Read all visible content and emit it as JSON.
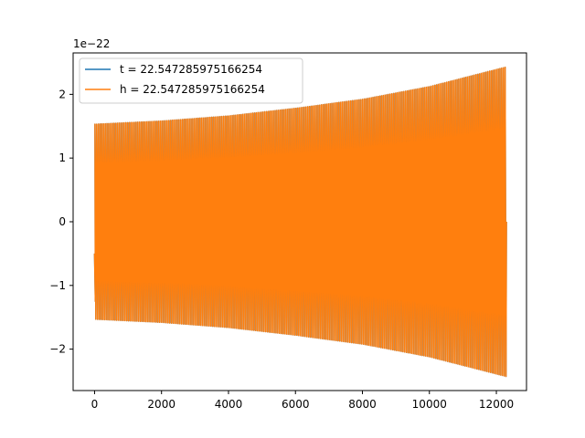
{
  "chart_data": {
    "type": "line",
    "title": "",
    "xlabel": "",
    "ylabel": "",
    "y_offset_label": "1e−22",
    "xlim": [
      -640,
      12900
    ],
    "ylim": [
      -2.65,
      2.65
    ],
    "x_ticks": [
      {
        "value": 0,
        "label": "0"
      },
      {
        "value": 2000,
        "label": "2000"
      },
      {
        "value": 4000,
        "label": "4000"
      },
      {
        "value": 6000,
        "label": "6000"
      },
      {
        "value": 8000,
        "label": "8000"
      },
      {
        "value": 10000,
        "label": "10000"
      },
      {
        "value": 12000,
        "label": "12000"
      }
    ],
    "y_ticks": [
      {
        "value": -2,
        "label": "−2"
      },
      {
        "value": -1,
        "label": "−1"
      },
      {
        "value": 0,
        "label": "0"
      },
      {
        "value": 1,
        "label": "1"
      },
      {
        "value": 2,
        "label": "2"
      }
    ],
    "grid": false,
    "legend_position": "top-left",
    "series": [
      {
        "name": "t = 22.547285975166254",
        "color": "#1f77b4",
        "x_range": [
          0,
          12300
        ],
        "envelope_x": [
          0,
          2000,
          4000,
          6000,
          8000,
          10000,
          12300
        ],
        "envelope_y": [
          1.53,
          1.58,
          1.66,
          1.78,
          1.92,
          2.12,
          2.43
        ],
        "approx_cycles": 240
      },
      {
        "name": "h = 22.547285975166254",
        "color": "#ff7f0e",
        "x_range": [
          0,
          12300
        ],
        "envelope_x": [
          0,
          2000,
          4000,
          6000,
          8000,
          10000,
          12300
        ],
        "envelope_y": [
          1.53,
          1.58,
          1.66,
          1.78,
          1.92,
          2.12,
          2.43
        ],
        "approx_cycles": 240
      }
    ]
  }
}
